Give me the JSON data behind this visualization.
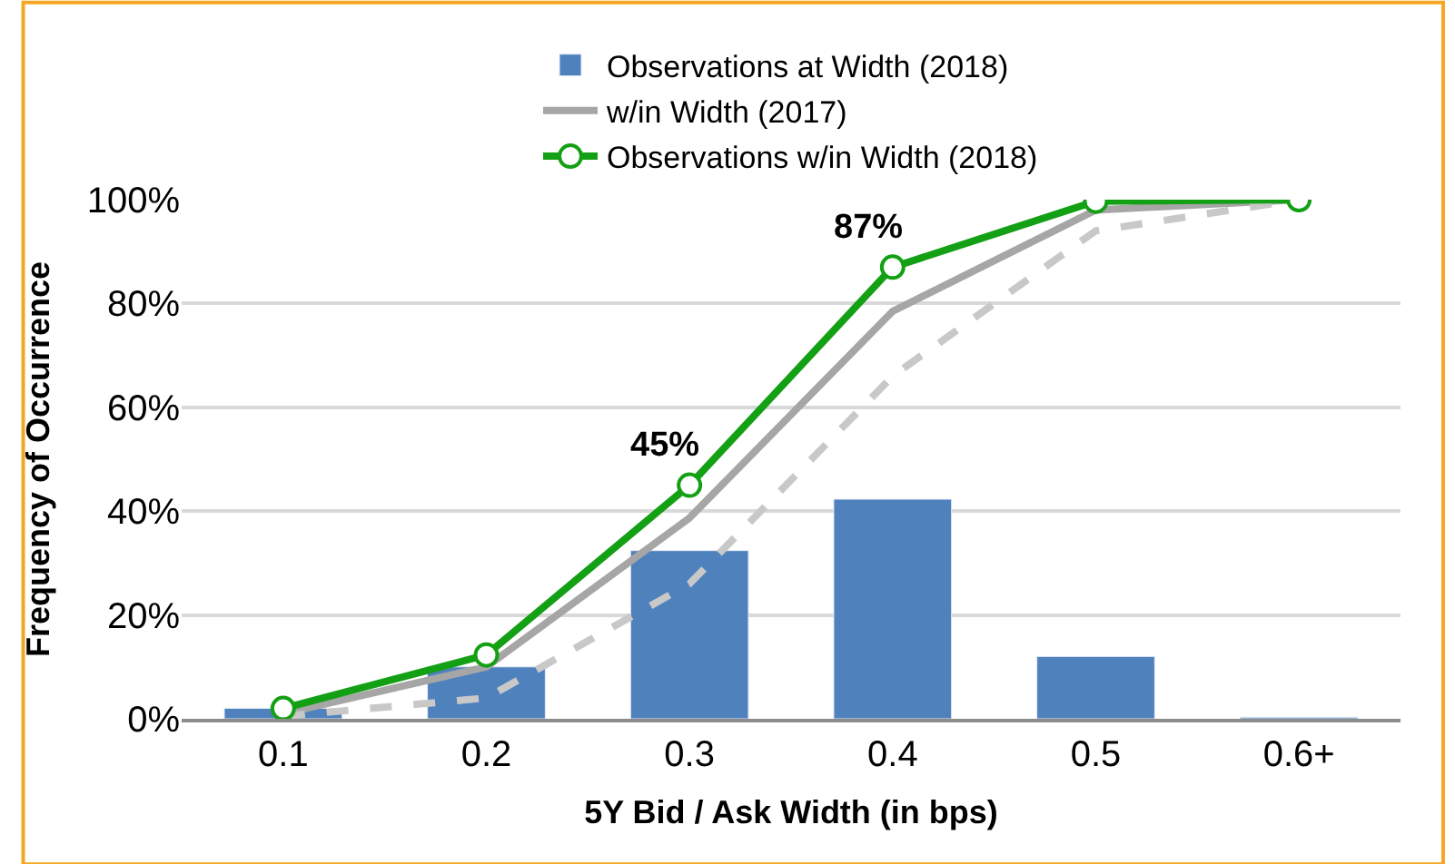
{
  "chart_data": {
    "type": "bar",
    "xlabel": "5Y Bid / Ask Width (in bps)",
    "ylabel": "Frequency of Occurrence",
    "categories": [
      "0.1",
      "0.2",
      "0.3",
      "0.4",
      "0.5",
      "0.6+"
    ],
    "series": [
      {
        "name": "Observations at Width (2018)",
        "color": "#4f81bd",
        "values": [
          2,
          10,
          32.4,
          42.3,
          12,
          0.3
        ]
      },
      {
        "name": "w/in Width (2017)",
        "type": "line",
        "color": "#a6a6a6",
        "marker": "none",
        "line_style": "solid",
        "values": [
          1,
          10,
          38.7,
          78.5,
          98,
          100
        ]
      },
      {
        "type": "line",
        "color": "#c8c8c8",
        "marker": "none",
        "line_style": "dashed",
        "values": [
          0.5,
          4,
          26,
          66,
          94,
          100
        ]
      },
      {
        "name": "Observations w/in Width (2018)",
        "type": "line",
        "color": "#14a014",
        "marker": "circle",
        "line_style": "solid",
        "values": [
          2,
          12.3,
          45,
          87,
          99.7,
          100
        ]
      }
    ],
    "annotations": [
      {
        "text": "45%",
        "x": "0.3",
        "y": 45
      },
      {
        "text": "87%",
        "x": "0.4",
        "y": 87
      }
    ],
    "ylim": [
      0,
      100
    ],
    "yticks": [
      {
        "value": 0,
        "label": "0%"
      },
      {
        "value": 20,
        "label": "20%"
      },
      {
        "value": 40,
        "label": "40%"
      },
      {
        "value": 60,
        "label": "60%"
      },
      {
        "value": 80,
        "label": "80%"
      },
      {
        "value": 100,
        "label": "100%"
      }
    ],
    "grid": "y",
    "legend": "top"
  }
}
